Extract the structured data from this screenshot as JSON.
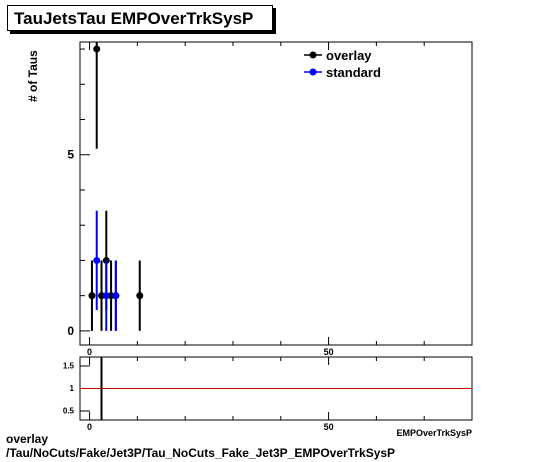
{
  "header": {
    "title": "TauJetsTau EMPOverTrkSysP"
  },
  "footer": {
    "line1": "overlay",
    "line2": "/Tau/NoCuts/Fake/Jet3P/Tau_NoCuts_Fake_Jet3P_EMPOverTrkSysP"
  },
  "chart_data": [
    {
      "type": "scatter",
      "title": "TauJetsTau EMPOverTrkSysP",
      "xlabel": "EMPOverTrkSysP",
      "ylabel": "# of Taus",
      "xlim": [
        -2,
        80
      ],
      "ylim": [
        -0.4,
        8.2
      ],
      "y_tick_labels": [
        "0",
        "5"
      ],
      "x_tick_labels": [
        "0",
        "50"
      ],
      "legend_position": "top-right",
      "series": [
        {
          "name": "overlay",
          "color": "#000000",
          "points": [
            {
              "x": 0.5,
              "y": 1,
              "err": 1
            },
            {
              "x": 1.5,
              "y": 8,
              "err": 2.83
            },
            {
              "x": 2.5,
              "y": 1,
              "err": 1
            },
            {
              "x": 3.5,
              "y": 2,
              "err": 1.41
            },
            {
              "x": 4.5,
              "y": 1,
              "err": 1
            },
            {
              "x": 5.5,
              "y": 1,
              "err": 1
            },
            {
              "x": 10.5,
              "y": 1,
              "err": 1
            }
          ]
        },
        {
          "name": "standard",
          "color": "#0000ff",
          "points": [
            {
              "x": 1.5,
              "y": 2,
              "err": 1.41
            },
            {
              "x": 3.5,
              "y": 1,
              "err": 1
            },
            {
              "x": 5.5,
              "y": 1,
              "err": 1
            }
          ]
        }
      ]
    },
    {
      "type": "scatter",
      "title": "",
      "xlabel": "",
      "ylabel": "",
      "xlim": [
        -2,
        80
      ],
      "ylim": [
        0.3,
        1.7
      ],
      "y_tick_labels": [
        "0.5",
        "1",
        "1.5"
      ],
      "x_tick_labels": [
        "0",
        "50"
      ],
      "reference_line": {
        "y": 1,
        "color": "#cc0000"
      },
      "series": [
        {
          "name": "",
          "color": "#000000",
          "points": [
            {
              "x": 2.5,
              "y": 1.0,
              "err": 1.0
            }
          ]
        }
      ]
    }
  ]
}
